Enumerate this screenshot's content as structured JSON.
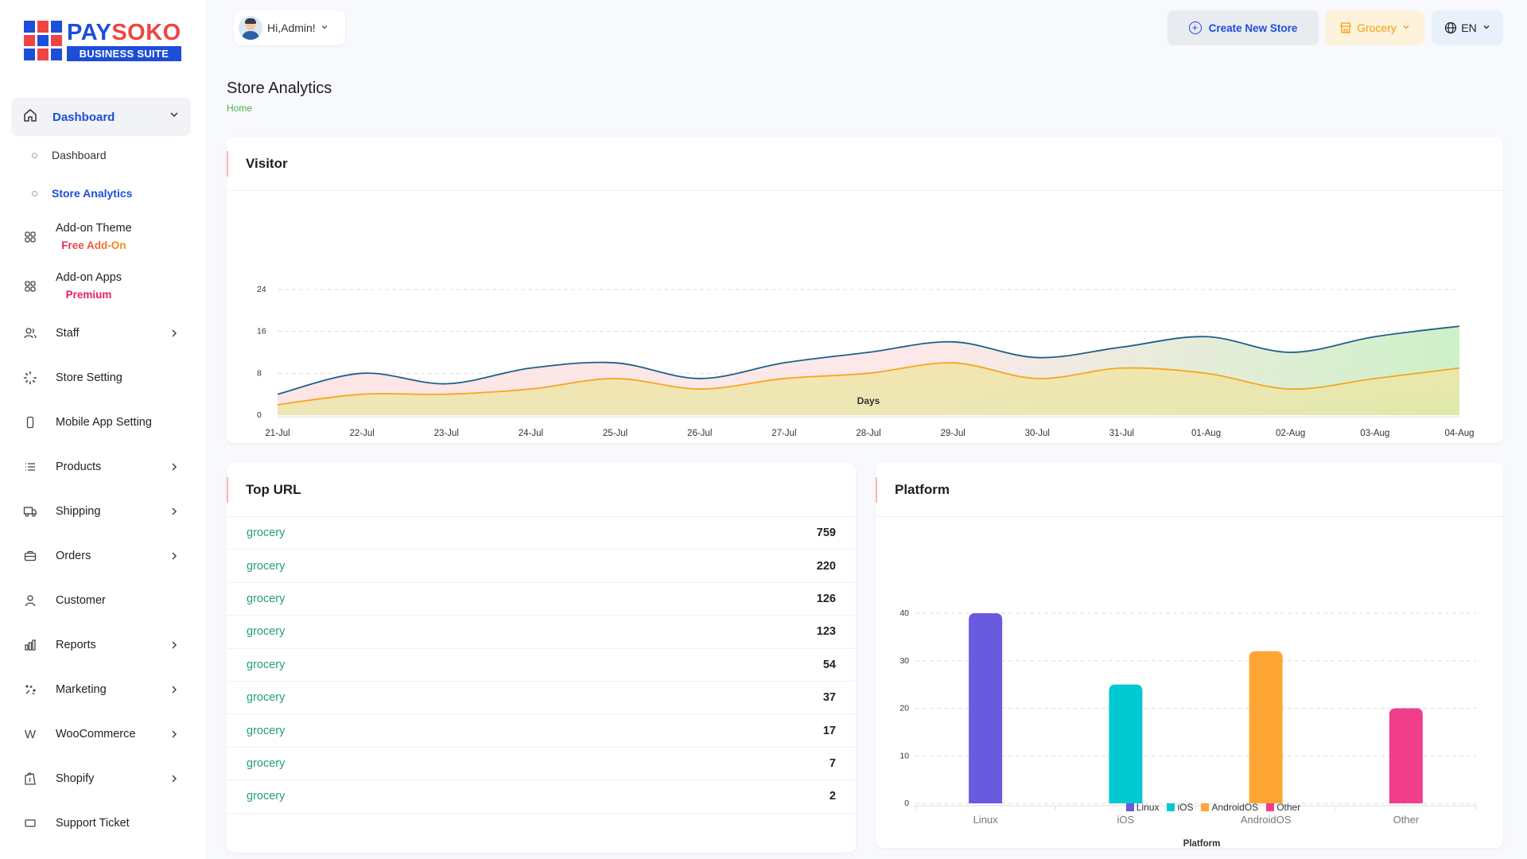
{
  "brand": {
    "name_part1": "PAY",
    "name_part2": "SOKO",
    "subtitle": "BUSINESS SUITE",
    "colors": {
      "blue": "#1d4ed8",
      "red": "#ef4444"
    }
  },
  "header": {
    "greeting": "Hi,Admin!",
    "create_store": "Create New Store",
    "store": "Grocery",
    "language": "EN"
  },
  "sidebar": {
    "dashboard": "Dashboard",
    "sub_items": [
      "Dashboard",
      "Store Analytics"
    ],
    "items": [
      {
        "label": "Add-on Theme",
        "badge": "Free Add-On",
        "icon": "grid-icon"
      },
      {
        "label": "Add-on Apps",
        "badge": "Premium",
        "icon": "grid-icon"
      },
      {
        "label": "Staff",
        "icon": "users-icon",
        "has_children": true
      },
      {
        "label": "Store Setting",
        "icon": "loader-icon"
      },
      {
        "label": "Mobile App Setting",
        "icon": "mobile-icon"
      },
      {
        "label": "Products",
        "icon": "list-icon",
        "has_children": true
      },
      {
        "label": "Shipping",
        "icon": "truck-icon",
        "has_children": true
      },
      {
        "label": "Orders",
        "icon": "briefcase-icon",
        "has_children": true
      },
      {
        "label": "Customer",
        "icon": "user-icon"
      },
      {
        "label": "Reports",
        "icon": "chart-icon",
        "has_children": true
      },
      {
        "label": "Marketing",
        "icon": "sparkle-icon",
        "has_children": true
      },
      {
        "label": "WooCommerce",
        "icon": "woocommerce-icon",
        "has_children": true
      },
      {
        "label": "Shopify",
        "icon": "shopify-icon",
        "has_children": true
      },
      {
        "label": "Support Ticket",
        "icon": "ticket-icon"
      }
    ]
  },
  "page": {
    "title": "Store Analytics",
    "breadcrumb": "Home"
  },
  "visitor_card": {
    "title": "Visitor"
  },
  "top_url_card": {
    "title": "Top URL",
    "rows": [
      {
        "url": "grocery",
        "count": "759"
      },
      {
        "url": "grocery",
        "count": "220"
      },
      {
        "url": "grocery",
        "count": "126"
      },
      {
        "url": "grocery",
        "count": "123"
      },
      {
        "url": "grocery",
        "count": "54"
      },
      {
        "url": "grocery",
        "count": "37"
      },
      {
        "url": "grocery",
        "count": "17"
      },
      {
        "url": "grocery",
        "count": "7"
      },
      {
        "url": "grocery",
        "count": "2"
      }
    ]
  },
  "platform_card": {
    "title": "Platform"
  },
  "chart_data": [
    {
      "type": "area",
      "categories": [
        "21-Jul",
        "22-Jul",
        "23-Jul",
        "24-Jul",
        "25-Jul",
        "26-Jul",
        "27-Jul",
        "28-Jul",
        "29-Jul",
        "30-Jul",
        "31-Jul",
        "01-Aug",
        "02-Aug",
        "03-Aug",
        "04-Aug"
      ],
      "xlabel": "Days",
      "ylim": [
        0,
        24
      ],
      "yticks": [
        0,
        8,
        16,
        24
      ],
      "series": [
        {
          "values": [
            4,
            8,
            6,
            9,
            10,
            7,
            10,
            12,
            14,
            11,
            13,
            15,
            12,
            15,
            17
          ],
          "color": "#1f5f8b"
        },
        {
          "values": [
            2,
            4,
            4,
            5,
            7,
            5,
            7,
            8,
            10,
            7,
            9,
            8,
            5,
            7,
            9
          ],
          "color": "#f5a623"
        }
      ],
      "grid": true
    },
    {
      "type": "bar",
      "categories": [
        "Linux",
        "iOS",
        "AndroidOS",
        "Other"
      ],
      "values": [
        40,
        25,
        32,
        20
      ],
      "colors": [
        "#6a5ae0",
        "#00c9d2",
        "#ffa534",
        "#f03e8b"
      ],
      "ylim": [
        0,
        40
      ],
      "yticks": [
        0,
        10,
        20,
        30,
        40
      ],
      "legend_title": "Platform",
      "legend_position": "bottom",
      "grid": true
    }
  ]
}
